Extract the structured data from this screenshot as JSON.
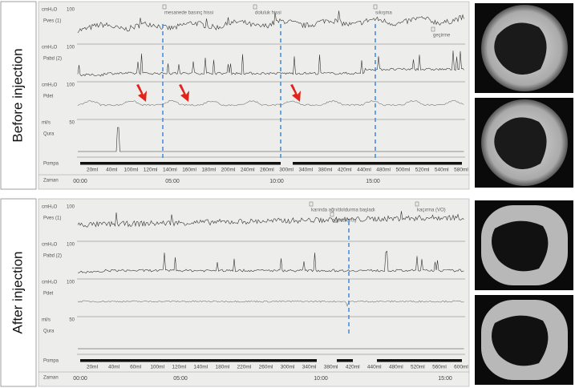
{
  "panels": [
    {
      "label": "Before injection",
      "channels": [
        {
          "unit": "cmH₂O",
          "top": "100",
          "name": "Pves (1)"
        },
        {
          "unit": "cmH₂O",
          "top": "100",
          "name": "Pabd (2)"
        },
        {
          "unit": "cmH₂O",
          "top": "100",
          "name": "Pdet"
        },
        {
          "unit": "ml/s",
          "top": "50",
          "name": "Qura"
        }
      ],
      "pump_title": "Pompa",
      "time_title": "Zaman",
      "pump_labels": [
        "20ml",
        "40ml",
        "100ml",
        "120ml",
        "140ml",
        "160ml",
        "180ml",
        "200ml",
        "240ml",
        "260ml",
        "300ml",
        "340ml",
        "380ml",
        "420ml",
        "440ml",
        "480ml",
        "500ml",
        "520ml",
        "540ml",
        "580ml"
      ],
      "time_labels": [
        "00:00",
        "05:00",
        "10:00",
        "15:00"
      ],
      "annotations": [
        "mesanede basınç hissi",
        "doluluk hissi",
        "sıkışma",
        "geçirme"
      ]
    },
    {
      "label": "After injection",
      "channels": [
        {
          "unit": "cmH₂O",
          "top": "100",
          "name": "Pves (1)"
        },
        {
          "unit": "cmH₂O",
          "top": "100",
          "name": "Pabd (2)"
        },
        {
          "unit": "cmH₂O",
          "top": "100",
          "name": "Pdet"
        },
        {
          "unit": "ml/s",
          "top": "50",
          "name": "Qura"
        }
      ],
      "pump_title": "Pompa",
      "time_title": "Zaman",
      "pump_labels": [
        "20ml",
        "40ml",
        "60ml",
        "100ml",
        "120ml",
        "140ml",
        "180ml",
        "220ml",
        "260ml",
        "300ml",
        "340ml",
        "380ml",
        "420ml",
        "440ml",
        "480ml",
        "520ml",
        "560ml",
        "600ml"
      ],
      "time_labels": [
        "00:00",
        "05:00",
        "10:00",
        "15:00"
      ],
      "annotations": [
        "karında ağrı/doldurma başladı",
        "ağrıda artış",
        "kaçırma (VO)"
      ]
    }
  ]
}
